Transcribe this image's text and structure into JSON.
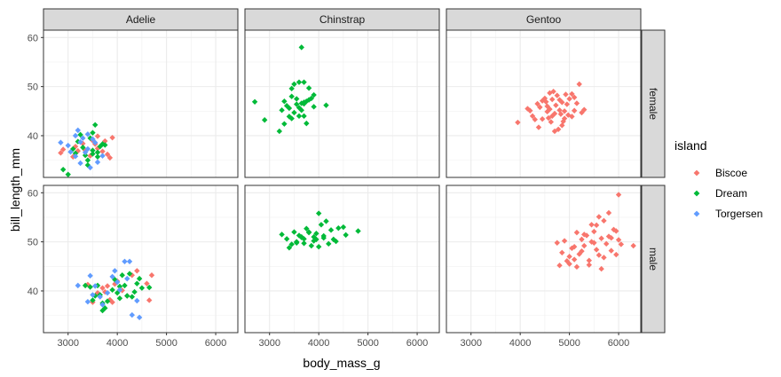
{
  "chart_data": {
    "type": "scatter",
    "facet_cols": [
      "Adelie",
      "Chinstrap",
      "Gentoo"
    ],
    "facet_rows": [
      "female",
      "male"
    ],
    "xlabel": "body_mass_g",
    "ylabel": "bill_length_mm",
    "xlim": [
      2500,
      6450
    ],
    "ylim": [
      31.5,
      61.5
    ],
    "x_ticks": [
      3000,
      4000,
      5000,
      6000
    ],
    "y_ticks": [
      40,
      50,
      60
    ],
    "grid": true,
    "legend": {
      "title": "island",
      "position": "right",
      "entries": [
        {
          "name": "Biscoe",
          "color": "#F8766D"
        },
        {
          "name": "Dream",
          "color": "#00BA38"
        },
        {
          "name": "Torgersen",
          "color": "#619CFF"
        }
      ]
    },
    "series": [
      {
        "species": "Adelie",
        "sex": "female",
        "island": "Biscoe",
        "points": [
          [
            2850,
            36.5
          ],
          [
            2900,
            37.2
          ],
          [
            3150,
            37.8
          ],
          [
            3200,
            36.9
          ],
          [
            3300,
            38.4
          ],
          [
            3350,
            37.0
          ],
          [
            3450,
            35.9
          ],
          [
            3500,
            39.0
          ],
          [
            3550,
            38.3
          ],
          [
            3600,
            37.4
          ],
          [
            3700,
            36.8
          ],
          [
            3750,
            38.9
          ],
          [
            3800,
            36.2
          ],
          [
            3850,
            35.5
          ],
          [
            3900,
            39.6
          ],
          [
            3600,
            39.9
          ],
          [
            3100,
            35.7
          ]
        ]
      },
      {
        "species": "Adelie",
        "sex": "female",
        "island": "Dream",
        "points": [
          [
            2900,
            33.1
          ],
          [
            3000,
            32.1
          ],
          [
            3150,
            36.4
          ],
          [
            3200,
            38.8
          ],
          [
            3300,
            37.6
          ],
          [
            3350,
            36.0
          ],
          [
            3400,
            35.0
          ],
          [
            3450,
            39.5
          ],
          [
            3500,
            37.0
          ],
          [
            3550,
            42.2
          ],
          [
            3600,
            36.6
          ],
          [
            3650,
            37.8
          ],
          [
            3700,
            38.3
          ],
          [
            3400,
            34.0
          ],
          [
            3250,
            40.2
          ],
          [
            3500,
            36.3
          ],
          [
            3600,
            35.7
          ],
          [
            3750,
            38.1
          ],
          [
            3100,
            37.3
          ],
          [
            3500,
            40.6
          ]
        ]
      },
      {
        "species": "Adelie",
        "sex": "female",
        "island": "Torgersen",
        "points": [
          [
            2850,
            38.6
          ],
          [
            3000,
            38.0
          ],
          [
            3050,
            36.7
          ],
          [
            3150,
            35.8
          ],
          [
            3200,
            41.1
          ],
          [
            3250,
            34.4
          ],
          [
            3300,
            39.5
          ],
          [
            3350,
            36.6
          ],
          [
            3400,
            37.3
          ],
          [
            3450,
            33.5
          ],
          [
            3500,
            39.3
          ],
          [
            3600,
            34.6
          ],
          [
            3700,
            35.9
          ],
          [
            3250,
            38.7
          ],
          [
            3150,
            40.0
          ],
          [
            3400,
            40.3
          ],
          [
            3550,
            38.6
          ]
        ]
      },
      {
        "species": "Adelie",
        "sex": "male",
        "island": "Biscoe",
        "points": [
          [
            3400,
            41.3
          ],
          [
            3500,
            37.7
          ],
          [
            3600,
            39.6
          ],
          [
            3700,
            40.6
          ],
          [
            3800,
            41.0
          ],
          [
            3900,
            37.7
          ],
          [
            3950,
            41.4
          ],
          [
            4000,
            42.0
          ],
          [
            4100,
            40.1
          ],
          [
            4200,
            39.0
          ],
          [
            4300,
            43.2
          ],
          [
            4400,
            44.1
          ],
          [
            4600,
            41.5
          ],
          [
            4700,
            43.2
          ],
          [
            4650,
            38.1
          ],
          [
            3750,
            39.8
          ],
          [
            3850,
            38.2
          ]
        ]
      },
      {
        "species": "Adelie",
        "sex": "male",
        "island": "Dream",
        "points": [
          [
            3350,
            41.1
          ],
          [
            3450,
            40.8
          ],
          [
            3500,
            38.1
          ],
          [
            3600,
            41.1
          ],
          [
            3650,
            39.2
          ],
          [
            3700,
            37.5
          ],
          [
            3750,
            36.5
          ],
          [
            3800,
            37.9
          ],
          [
            3900,
            40.2
          ],
          [
            3950,
            42.3
          ],
          [
            4000,
            39.6
          ],
          [
            4050,
            40.9
          ],
          [
            4100,
            43.2
          ],
          [
            4150,
            41.1
          ],
          [
            4200,
            39.0
          ],
          [
            4300,
            38.8
          ],
          [
            4350,
            39.8
          ],
          [
            4400,
            41.5
          ],
          [
            4450,
            42.5
          ],
          [
            4500,
            40.6
          ],
          [
            4650,
            40.7
          ],
          [
            3550,
            39.0
          ],
          [
            3700,
            36.0
          ],
          [
            4050,
            38.5
          ],
          [
            4250,
            43.5
          ]
        ]
      },
      {
        "species": "Adelie",
        "sex": "male",
        "island": "Torgersen",
        "points": [
          [
            3200,
            41.1
          ],
          [
            3400,
            37.8
          ],
          [
            3450,
            43.1
          ],
          [
            3500,
            39.2
          ],
          [
            3650,
            38.8
          ],
          [
            3700,
            37.2
          ],
          [
            3800,
            39.6
          ],
          [
            3900,
            42.9
          ],
          [
            4000,
            41.8
          ],
          [
            4050,
            40.2
          ],
          [
            4150,
            46.0
          ],
          [
            4200,
            42.5
          ],
          [
            4250,
            46.0
          ],
          [
            4300,
            35.1
          ],
          [
            4450,
            34.6
          ],
          [
            4400,
            38.0
          ],
          [
            3550,
            41.0
          ],
          [
            3950,
            44.1
          ]
        ]
      },
      {
        "species": "Chinstrap",
        "sex": "female",
        "island": "Dream",
        "points": [
          [
            2700,
            46.9
          ],
          [
            2900,
            43.2
          ],
          [
            3200,
            40.9
          ],
          [
            3250,
            45.2
          ],
          [
            3300,
            42.4
          ],
          [
            3350,
            46.1
          ],
          [
            3400,
            45.6
          ],
          [
            3450,
            49.6
          ],
          [
            3500,
            50.5
          ],
          [
            3550,
            46.4
          ],
          [
            3600,
            45.7
          ],
          [
            3650,
            46.6
          ],
          [
            3650,
            58.0
          ],
          [
            3700,
            50.9
          ],
          [
            3700,
            46.5
          ],
          [
            3750,
            47.0
          ],
          [
            3800,
            49.7
          ],
          [
            3850,
            47.6
          ],
          [
            3900,
            45.9
          ],
          [
            4150,
            46.2
          ],
          [
            3450,
            43.5
          ],
          [
            3550,
            47.5
          ],
          [
            3650,
            45.2
          ],
          [
            3750,
            42.5
          ],
          [
            3600,
            44.0
          ],
          [
            3800,
            47.3
          ],
          [
            3500,
            44.7
          ],
          [
            3300,
            47.0
          ],
          [
            3400,
            43.9
          ],
          [
            3700,
            46.8
          ],
          [
            3900,
            48.3
          ],
          [
            3600,
            50.9
          ],
          [
            3450,
            48.0
          ],
          [
            3700,
            44.0
          ]
        ]
      },
      {
        "species": "Chinstrap",
        "sex": "male",
        "island": "Dream",
        "points": [
          [
            3250,
            51.5
          ],
          [
            3350,
            50.6
          ],
          [
            3400,
            48.8
          ],
          [
            3450,
            49.5
          ],
          [
            3500,
            52.0
          ],
          [
            3550,
            50.0
          ],
          [
            3600,
            51.3
          ],
          [
            3650,
            50.9
          ],
          [
            3700,
            50.6
          ],
          [
            3750,
            52.7
          ],
          [
            3800,
            52.0
          ],
          [
            3850,
            49.2
          ],
          [
            3900,
            50.2
          ],
          [
            3950,
            51.7
          ],
          [
            4000,
            49.0
          ],
          [
            4050,
            53.5
          ],
          [
            4100,
            50.8
          ],
          [
            4150,
            54.2
          ],
          [
            4200,
            49.6
          ],
          [
            4300,
            50.5
          ],
          [
            4350,
            50.1
          ],
          [
            4400,
            52.8
          ],
          [
            4500,
            53.0
          ],
          [
            4550,
            51.4
          ],
          [
            4800,
            52.2
          ],
          [
            4000,
            55.8
          ],
          [
            3650,
            51.0
          ],
          [
            3700,
            49.7
          ],
          [
            3950,
            50.5
          ],
          [
            3800,
            51.9
          ],
          [
            4100,
            51.2
          ],
          [
            3550,
            49.8
          ],
          [
            4250,
            52.4
          ],
          [
            3900,
            51.0
          ]
        ]
      },
      {
        "species": "Gentoo",
        "sex": "female",
        "island": "Biscoe",
        "points": [
          [
            3950,
            42.7
          ],
          [
            4150,
            45.5
          ],
          [
            4200,
            45.1
          ],
          [
            4250,
            44.0
          ],
          [
            4300,
            43.3
          ],
          [
            4350,
            46.5
          ],
          [
            4375,
            41.7
          ],
          [
            4400,
            45.8
          ],
          [
            4450,
            43.4
          ],
          [
            4500,
            47.6
          ],
          [
            4525,
            46.9
          ],
          [
            4550,
            44.9
          ],
          [
            4575,
            43.6
          ],
          [
            4600,
            45.4
          ],
          [
            4625,
            42.8
          ],
          [
            4650,
            47.4
          ],
          [
            4675,
            49.0
          ],
          [
            4700,
            44.5
          ],
          [
            4725,
            46.2
          ],
          [
            4750,
            48.2
          ],
          [
            4775,
            41.3
          ],
          [
            4800,
            45.2
          ],
          [
            4825,
            44.4
          ],
          [
            4850,
            46.8
          ],
          [
            4875,
            42.9
          ],
          [
            4900,
            45.0
          ],
          [
            4925,
            48.4
          ],
          [
            4950,
            46.4
          ],
          [
            4975,
            44.2
          ],
          [
            5000,
            47.5
          ],
          [
            5050,
            43.9
          ],
          [
            5100,
            45.1
          ],
          [
            5150,
            46.6
          ],
          [
            5200,
            50.5
          ],
          [
            5250,
            44.7
          ],
          [
            5300,
            45.3
          ],
          [
            4450,
            47.1
          ],
          [
            4700,
            40.9
          ],
          [
            4600,
            48.7
          ],
          [
            4800,
            47.3
          ],
          [
            4900,
            43.5
          ],
          [
            5050,
            48.5
          ],
          [
            4550,
            46.0
          ],
          [
            4850,
            42.1
          ],
          [
            4650,
            44.0
          ],
          [
            5100,
            47.8
          ]
        ]
      },
      {
        "species": "Gentoo",
        "sex": "male",
        "island": "Biscoe",
        "points": [
          [
            4750,
            49.8
          ],
          [
            4800,
            45.2
          ],
          [
            4850,
            47.8
          ],
          [
            4900,
            50.2
          ],
          [
            4950,
            46.1
          ],
          [
            5000,
            45.5
          ],
          [
            5050,
            48.7
          ],
          [
            5100,
            49.0
          ],
          [
            5150,
            44.9
          ],
          [
            5200,
            47.5
          ],
          [
            5250,
            50.5
          ],
          [
            5300,
            49.2
          ],
          [
            5350,
            51.3
          ],
          [
            5400,
            46.2
          ],
          [
            5450,
            50.0
          ],
          [
            5500,
            52.1
          ],
          [
            5550,
            48.4
          ],
          [
            5600,
            47.3
          ],
          [
            5650,
            50.7
          ],
          [
            5700,
            54.3
          ],
          [
            5750,
            49.6
          ],
          [
            5800,
            51.1
          ],
          [
            5850,
            48.2
          ],
          [
            5900,
            52.5
          ],
          [
            5950,
            47.4
          ],
          [
            6000,
            50.4
          ],
          [
            6050,
            49.5
          ],
          [
            6300,
            49.2
          ],
          [
            6000,
            59.6
          ],
          [
            5800,
            55.9
          ],
          [
            5600,
            55.1
          ],
          [
            5550,
            53.4
          ],
          [
            5100,
            46.4
          ],
          [
            5400,
            45.3
          ],
          [
            5300,
            51.5
          ],
          [
            5650,
            44.5
          ],
          [
            5000,
            47.0
          ],
          [
            5150,
            51.9
          ],
          [
            5500,
            49.8
          ],
          [
            5700,
            46.8
          ],
          [
            5850,
            50.8
          ],
          [
            5250,
            48.1
          ],
          [
            5450,
            53.5
          ],
          [
            5950,
            52.2
          ]
        ]
      }
    ]
  }
}
